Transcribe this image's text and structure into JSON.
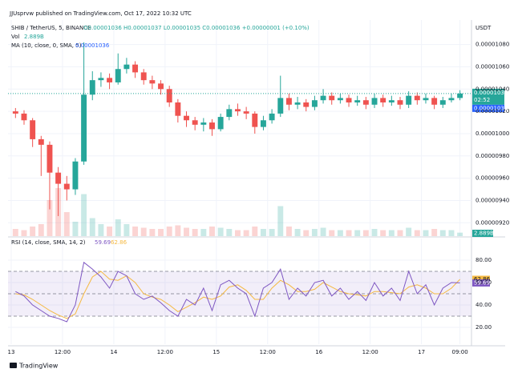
{
  "header": "JJUsprvw published on TradingView.com, Oct 17, 2022 10:32 UTC",
  "footer": "TradingView",
  "chart_data": {
    "type": "candlestick",
    "symbol": "SHIB / TetherUS, 5, BINANCE",
    "ohlc_legend": "O0.00001036 H0.00001037 L0.00001035 C0.00001036 +0.00000001 (+0.10%)",
    "currency": "USDT",
    "countdown": "02:52",
    "ma_legend": "MA (10, close, 0, SMA, 5)",
    "ma_value": "0.00001036",
    "ma_color": "#2962ff",
    "up_color": "#26a69a",
    "down_color": "#ef5350",
    "grid": true,
    "xlim": [
      -0.75,
      107.7
    ],
    "xticks": [
      {
        "value": 0,
        "label": "13"
      },
      {
        "value": 12,
        "label": "12:00"
      },
      {
        "value": 24,
        "label": "14"
      },
      {
        "value": 36,
        "label": "12:00"
      },
      {
        "value": 48,
        "label": "15"
      },
      {
        "value": 60,
        "label": "12:00"
      },
      {
        "value": 72,
        "label": "16"
      },
      {
        "value": 84,
        "label": "12:00"
      },
      {
        "value": 96,
        "label": "17"
      },
      {
        "value": 105,
        "label": "09:00"
      }
    ],
    "ylim": [
      9.08e-06,
      1.102e-05
    ],
    "yticks": [
      {
        "value": 9.2e-06,
        "label": "0.00000920"
      },
      {
        "value": 9.4e-06,
        "label": "0.00000940"
      },
      {
        "value": 9.6e-06,
        "label": "0.00000960"
      },
      {
        "value": 9.8e-06,
        "label": "0.00000980"
      },
      {
        "value": 1e-05,
        "label": "0.00001000"
      },
      {
        "value": 1.02e-05,
        "label": "0.00001020"
      },
      {
        "value": 1.04e-05,
        "label": "0.00001040"
      },
      {
        "value": 1.06e-05,
        "label": "0.00001060"
      },
      {
        "value": 1.08e-05,
        "label": "0.00001080"
      }
    ],
    "x": [
      1,
      3,
      5,
      7,
      9,
      11,
      13,
      15,
      17,
      19,
      21,
      23,
      25,
      27,
      29,
      31,
      33,
      35,
      37,
      39,
      41,
      43,
      45,
      47,
      49,
      51,
      53,
      55,
      57,
      59,
      61,
      63,
      65,
      67,
      69,
      71,
      73,
      75,
      77,
      79,
      81,
      83,
      85,
      87,
      89,
      91,
      93,
      95,
      97,
      99,
      101,
      103,
      105
    ],
    "open": [
      1.02e-05,
      1.018e-05,
      1.012e-05,
      9.95e-06,
      9.9e-06,
      9.65e-06,
      9.55e-06,
      9.5e-06,
      9.75e-06,
      1.035e-05,
      1.048e-05,
      1.05e-05,
      1.046e-05,
      1.058e-05,
      1.062e-05,
      1.055e-05,
      1.048e-05,
      1.045e-05,
      1.04e-05,
      1.028e-05,
      1.016e-05,
      1.012e-05,
      1.008e-05,
      1.01e-05,
      1.004e-05,
      1.015e-05,
      1.022e-05,
      1.02e-05,
      1.018e-05,
      1.006e-05,
      1.012e-05,
      1.018e-05,
      1.032e-05,
      1.026e-05,
      1.028e-05,
      1.024e-05,
      1.03e-05,
      1.034e-05,
      1.03e-05,
      1.032e-05,
      1.028e-05,
      1.03e-05,
      1.026e-05,
      1.032e-05,
      1.028e-05,
      1.03e-05,
      1.026e-05,
      1.034e-05,
      1.03e-05,
      1.032e-05,
      1.026e-05,
      1.03e-05,
      1.032e-05
    ],
    "high": [
      1.023e-05,
      1.021e-05,
      1.014e-05,
      9.98e-06,
      9.93e-06,
      9.7e-06,
      9.62e-06,
      9.78e-06,
      1.082e-05,
      1.056e-05,
      1.055e-05,
      1.054e-05,
      1.072e-05,
      1.068e-05,
      1.065e-05,
      1.058e-05,
      1.052e-05,
      1.048e-05,
      1.043e-05,
      1.031e-05,
      1.02e-05,
      1.015e-05,
      1.014e-05,
      1.013e-05,
      1.018e-05,
      1.026e-05,
      1.027e-05,
      1.024e-05,
      1.02e-05,
      1.016e-05,
      1.022e-05,
      1.052e-05,
      1.036e-05,
      1.033e-05,
      1.031e-05,
      1.034e-05,
      1.04e-05,
      1.037e-05,
      1.036e-05,
      1.035e-05,
      1.034e-05,
      1.033e-05,
      1.036e-05,
      1.035e-05,
      1.034e-05,
      1.033e-05,
      1.038e-05,
      1.037e-05,
      1.036e-05,
      1.034e-05,
      1.033e-05,
      1.036e-05,
      1.039e-05
    ],
    "low": [
      1.014e-05,
      1.008e-05,
      9.88e-06,
      9.62e-06,
      9.32e-06,
      9.26e-06,
      9.4e-06,
      9.45e-06,
      9.72e-06,
      1.03e-05,
      1.042e-05,
      1.04e-05,
      1.044e-05,
      1.054e-05,
      1.05e-05,
      1.044e-05,
      1.04e-05,
      1.035e-05,
      1.024e-05,
      1.01e-05,
      1.006e-05,
      1.003e-05,
      1.002e-05,
      9.98e-06,
      1.002e-05,
      1.012e-05,
      1.016e-05,
      1.013e-05,
      1e-05,
      1.003e-05,
      1.009e-05,
      1.015e-05,
      1.021e-05,
      1.022e-05,
      1.02e-05,
      1.021e-05,
      1.027e-05,
      1.026e-05,
      1.027e-05,
      1.024e-05,
      1.025e-05,
      1.022e-05,
      1.023e-05,
      1.024e-05,
      1.025e-05,
      1.022e-05,
      1.023e-05,
      1.026e-05,
      1.027e-05,
      1.022e-05,
      1.023e-05,
      1.028e-05,
      1.03e-05
    ],
    "close": [
      1.018e-05,
      1.012e-05,
      9.95e-06,
      9.9e-06,
      9.65e-06,
      9.55e-06,
      9.5e-06,
      9.75e-06,
      1.035e-05,
      1.048e-05,
      1.05e-05,
      1.046e-05,
      1.058e-05,
      1.062e-05,
      1.055e-05,
      1.048e-05,
      1.045e-05,
      1.04e-05,
      1.028e-05,
      1.016e-05,
      1.012e-05,
      1.008e-05,
      1.01e-05,
      1.004e-05,
      1.015e-05,
      1.022e-05,
      1.02e-05,
      1.018e-05,
      1.006e-05,
      1.012e-05,
      1.018e-05,
      1.032e-05,
      1.026e-05,
      1.028e-05,
      1.024e-05,
      1.03e-05,
      1.034e-05,
      1.03e-05,
      1.032e-05,
      1.028e-05,
      1.03e-05,
      1.026e-05,
      1.032e-05,
      1.028e-05,
      1.03e-05,
      1.026e-05,
      1.034e-05,
      1.03e-05,
      1.032e-05,
      1.026e-05,
      1.03e-05,
      1.032e-05,
      1.036e-05
    ],
    "volume": {
      "name": "Vol",
      "last_value_label": "2.889B",
      "values": [
        6,
        5,
        8,
        10,
        30,
        40,
        20,
        12,
        35,
        15,
        10,
        8,
        14,
        10,
        8,
        7,
        6,
        6,
        8,
        9,
        7,
        6,
        6,
        8,
        7,
        6,
        5,
        5,
        8,
        6,
        6,
        25,
        8,
        6,
        5,
        6,
        7,
        5,
        5,
        5,
        5,
        5,
        6,
        5,
        5,
        5,
        7,
        5,
        5,
        6,
        5,
        5,
        2.889
      ]
    },
    "rsi": {
      "name": "RSI (14, close, SMA, 14, 2)",
      "color": "#7e57c2",
      "values": [
        52,
        48,
        40,
        35,
        30,
        28,
        25,
        40,
        78,
        72,
        65,
        55,
        70,
        66,
        50,
        45,
        48,
        42,
        35,
        30,
        45,
        40,
        55,
        35,
        58,
        62,
        55,
        50,
        30,
        55,
        60,
        72,
        45,
        55,
        48,
        60,
        62,
        48,
        55,
        45,
        52,
        44,
        60,
        48,
        55,
        44,
        70,
        50,
        58,
        40,
        55,
        60,
        59.69
      ]
    },
    "rsi_ma": {
      "color": "#f5b942",
      "values": [
        50,
        49,
        45,
        40,
        35,
        31,
        28,
        32,
        50,
        65,
        70,
        63,
        62,
        66,
        60,
        50,
        47,
        45,
        40,
        34,
        38,
        42,
        47,
        45,
        48,
        56,
        58,
        53,
        45,
        45,
        55,
        62,
        58,
        52,
        52,
        54,
        60,
        56,
        52,
        50,
        49,
        48,
        52,
        52,
        51,
        50,
        56,
        58,
        55,
        50,
        50,
        55,
        62.86
      ]
    },
    "rsi_ylim": [
      5,
      99.3
    ],
    "rsi_yticks": [
      {
        "value": 20,
        "label": "20.00"
      },
      {
        "value": 40,
        "label": "40.00"
      },
      {
        "value": 60,
        "label": "60.00"
      },
      {
        "value": 80,
        "label": "80.00"
      }
    ],
    "rsi_bands": [
      70,
      50,
      30
    ]
  }
}
